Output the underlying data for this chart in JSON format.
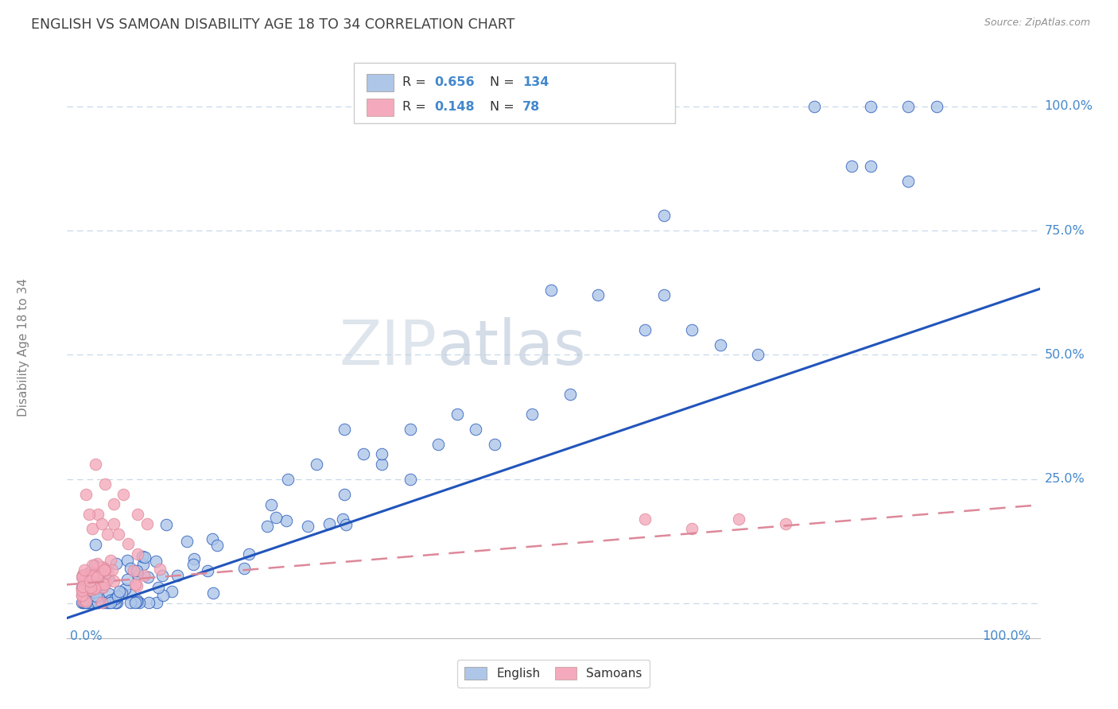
{
  "title": "ENGLISH VS SAMOAN DISABILITY AGE 18 TO 34 CORRELATION CHART",
  "source": "Source: ZipAtlas.com",
  "ylabel": "Disability Age 18 to 34",
  "english_R": 0.656,
  "english_N": 134,
  "samoan_R": 0.148,
  "samoan_N": 78,
  "watermark": "ZIPatlas",
  "english_color": "#aec6e8",
  "samoan_color": "#f4aabc",
  "english_line_color": "#2255bb",
  "samoan_line_color": "#dd8899",
  "grid_color": "#c8d8e8",
  "title_color": "#404040",
  "tick_label_color": "#4488cc",
  "legend_text_color": "#4488cc",
  "ylabel_color": "#808080",
  "source_color": "#909090"
}
